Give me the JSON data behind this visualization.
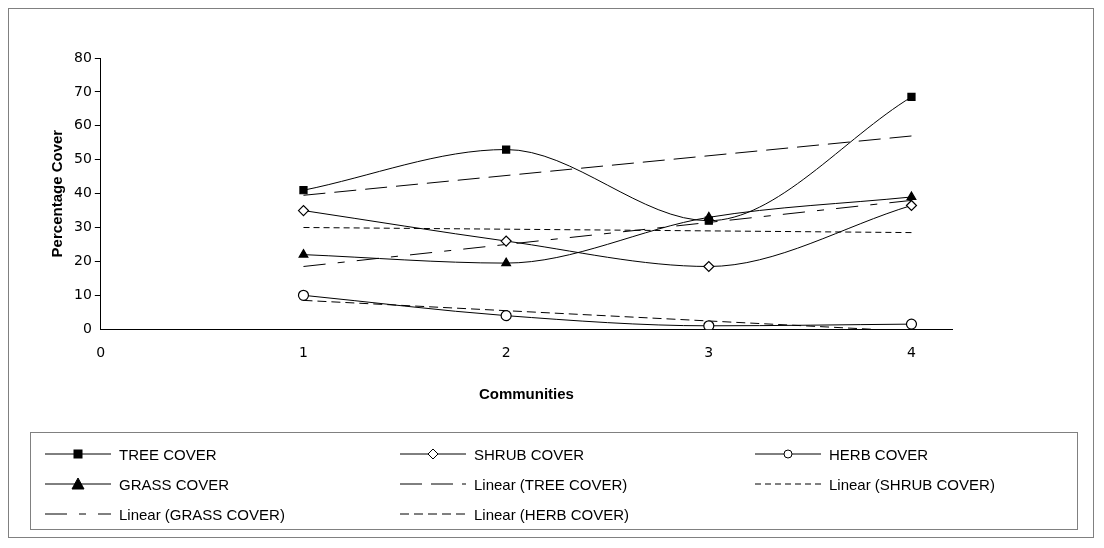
{
  "chart_data": {
    "type": "line",
    "xlabel": "Communities",
    "ylabel": "Percentage Cover",
    "x": [
      1,
      2,
      3,
      4
    ],
    "xlim": [
      0,
      4.2
    ],
    "xticks": [
      0,
      1,
      2,
      3,
      4
    ],
    "ylim": [
      0,
      80
    ],
    "yticks": [
      0,
      10,
      20,
      30,
      40,
      50,
      60,
      70,
      80
    ],
    "grid": false,
    "legend": "bottom",
    "series": [
      {
        "name": "TREE COVER",
        "color": "#000000",
        "marker": "square",
        "line_style": "solid",
        "values": [
          41,
          53,
          32,
          68.5
        ]
      },
      {
        "name": "SHRUB COVER",
        "color": "#000000",
        "marker": "diamond",
        "line_style": "solid",
        "values": [
          35,
          26,
          18.5,
          36.5
        ]
      },
      {
        "name": "HERB COVER",
        "color": "#000000",
        "marker": "circle",
        "line_style": "solid",
        "values": [
          10,
          4,
          1,
          1.5
        ]
      },
      {
        "name": "GRASS COVER",
        "color": "#000000",
        "marker": "triangle",
        "line_style": "solid",
        "values": [
          22,
          19.5,
          33,
          39
        ]
      },
      {
        "name": "Linear (TREE COVER)",
        "type": "line",
        "color": "#000000",
        "marker": "none",
        "line_style": "dashed",
        "x": [
          1,
          4
        ],
        "values": [
          39.5,
          57
        ]
      },
      {
        "name": "Linear (SHRUB COVER)",
        "type": "line",
        "color": "#000000",
        "marker": "none",
        "line_style": "dashed",
        "x": [
          1,
          4
        ],
        "values": [
          30,
          28.5
        ]
      },
      {
        "name": "Linear (GRASS COVER)",
        "type": "line",
        "color": "#000000",
        "marker": "none",
        "line_style": "dashed",
        "x": [
          1,
          4
        ],
        "values": [
          18.5,
          38
        ]
      },
      {
        "name": "Linear (HERB COVER)",
        "type": "line",
        "color": "#000000",
        "marker": "none",
        "line_style": "dashed",
        "x": [
          1,
          3.8
        ],
        "values": [
          8.5,
          0
        ]
      }
    ]
  }
}
